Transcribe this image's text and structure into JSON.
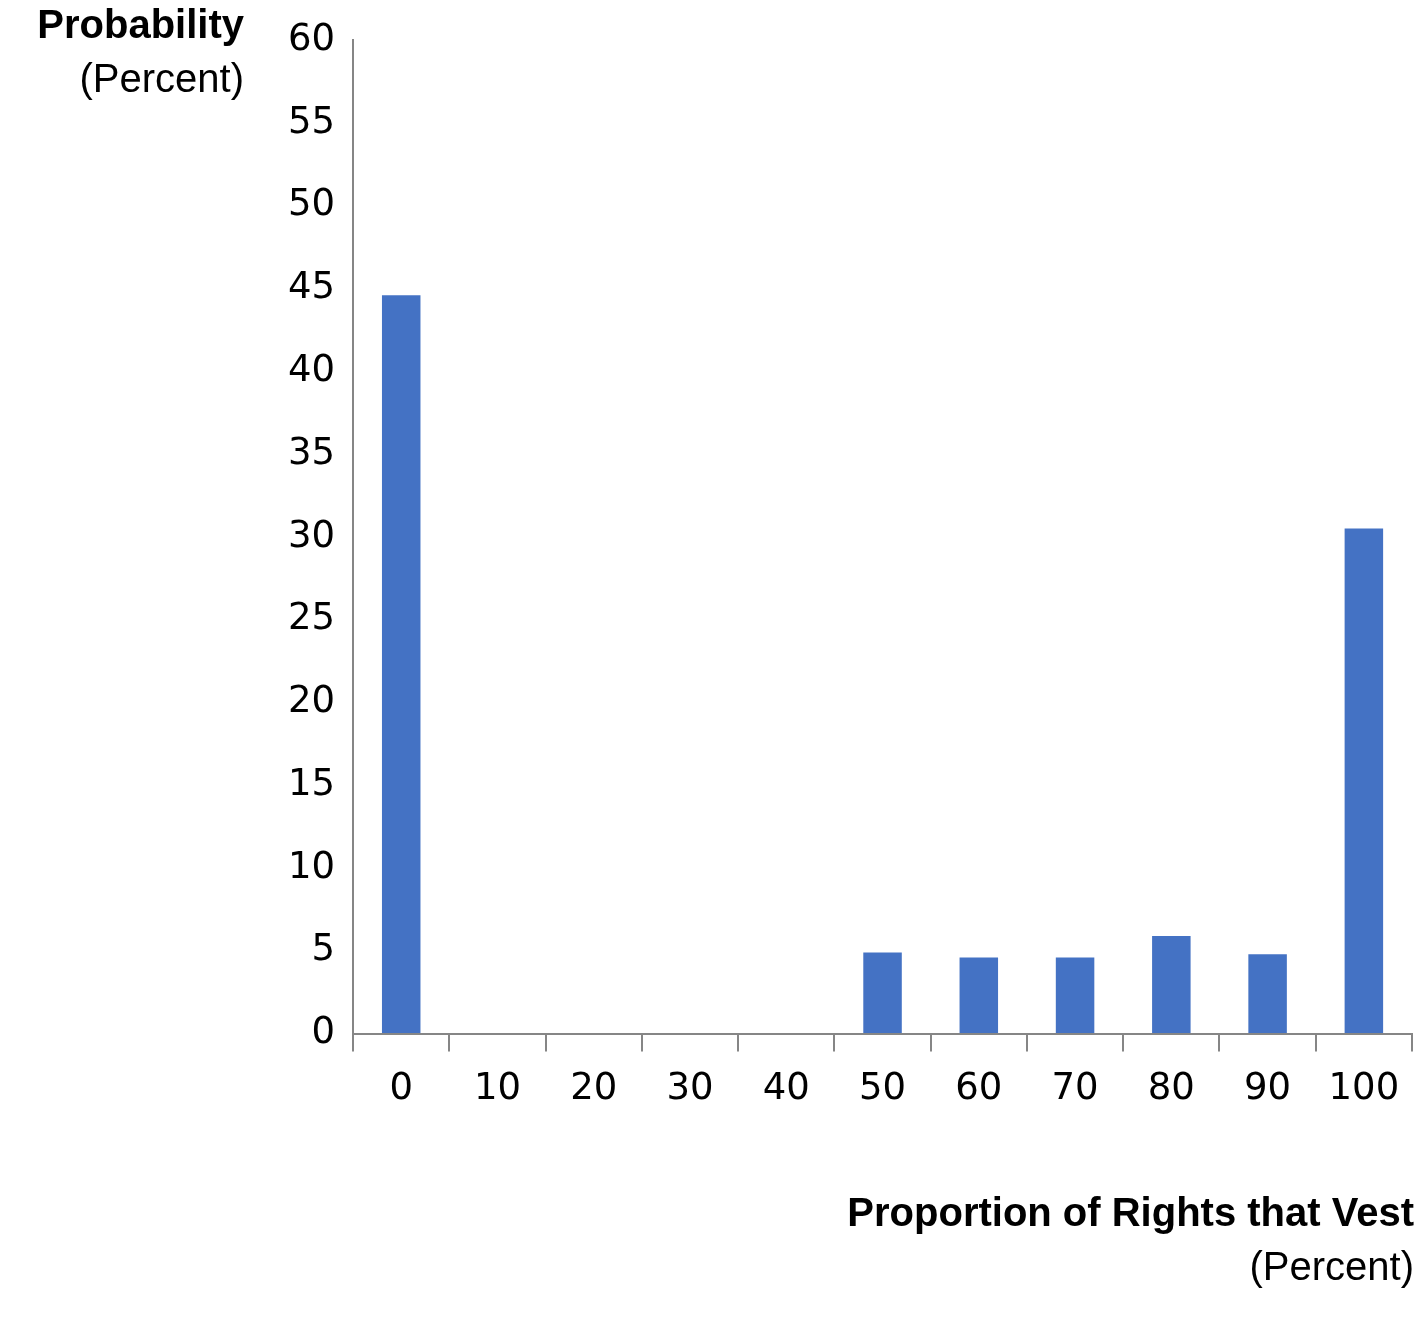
{
  "chart_data": {
    "type": "bar",
    "ylabel": [
      "Probability",
      "(Percent)"
    ],
    "xlabel": [
      "Proportion of Rights that Vest",
      "(Percent)"
    ],
    "categories": [
      "0",
      "10",
      "20",
      "30",
      "40",
      "50",
      "60",
      "70",
      "80",
      "90",
      "100"
    ],
    "values": [
      44.6,
      0,
      0,
      0,
      0,
      4.9,
      4.6,
      4.6,
      5.9,
      4.8,
      30.5
    ],
    "color": "#4472c4",
    "ylim": [
      0,
      60
    ],
    "yticks": [
      0,
      5,
      10,
      15,
      20,
      25,
      30,
      35,
      40,
      45,
      50,
      55,
      60
    ],
    "grid": false
  }
}
